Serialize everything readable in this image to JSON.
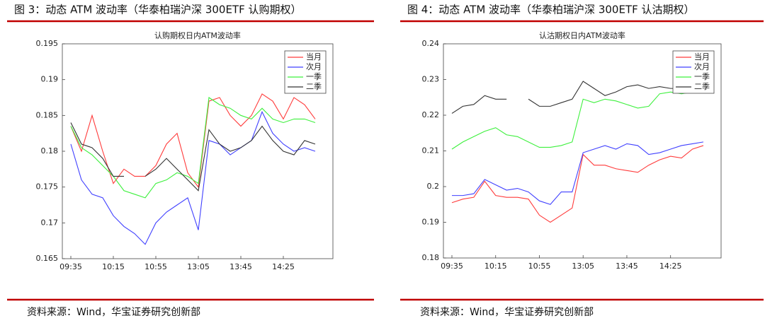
{
  "chart_data": [
    {
      "type": "line",
      "caption": "图 3：动态 ATM 波动率（华泰柏瑞沪深 300ETF 认购期权）",
      "title": "认购期权日内ATM波动率",
      "source": "资料来源：Wind，华宝证券研究创新部",
      "categories": [
        "09:35",
        null,
        null,
        null,
        "10:15",
        null,
        null,
        null,
        "10:55",
        null,
        null,
        null,
        "13:05",
        null,
        null,
        null,
        "13:45",
        null,
        null,
        null,
        "14:25",
        null,
        null,
        null
      ],
      "ylim": [
        0.165,
        0.195
      ],
      "yticks": [
        0.165,
        0.17,
        0.175,
        0.18,
        0.185,
        0.19,
        0.195
      ],
      "grid": false,
      "legend": "upper right",
      "series": [
        {
          "name": "当月",
          "color": "#ff3b3b",
          "values": [
            0.1835,
            0.18,
            0.185,
            0.18,
            0.1755,
            0.1775,
            0.1765,
            0.1765,
            0.178,
            0.181,
            0.1825,
            0.177,
            0.175,
            0.187,
            0.1875,
            0.185,
            0.1835,
            0.185,
            0.188,
            0.187,
            0.1845,
            0.1875,
            0.1865,
            0.1845
          ]
        },
        {
          "name": "次月",
          "color": "#4040ff",
          "values": [
            0.181,
            0.176,
            0.174,
            0.1735,
            0.171,
            0.1695,
            0.1685,
            0.167,
            0.17,
            0.1715,
            0.1725,
            0.1735,
            0.169,
            0.1815,
            0.181,
            0.1795,
            0.1805,
            0.1815,
            0.1855,
            0.1825,
            0.181,
            0.18,
            0.1805,
            0.18
          ]
        },
        {
          "name": "一季",
          "color": "#3cf03c",
          "values": [
            0.1835,
            0.1805,
            0.1795,
            0.178,
            0.1765,
            0.1745,
            0.174,
            0.1735,
            0.1755,
            0.176,
            0.177,
            0.1765,
            0.1755,
            0.1875,
            0.1865,
            0.186,
            0.185,
            0.1845,
            0.186,
            0.1845,
            0.184,
            0.1845,
            0.1845,
            0.184
          ]
        },
        {
          "name": "二季",
          "color": "#333333",
          "values": [
            0.184,
            0.181,
            0.1805,
            0.179,
            0.1765,
            0.1765,
            null,
            0.1765,
            0.1775,
            0.179,
            0.1775,
            0.176,
            0.1745,
            0.183,
            0.181,
            0.18,
            0.1805,
            0.1815,
            0.1835,
            0.1815,
            0.18,
            0.1795,
            0.1815,
            0.181
          ]
        }
      ]
    },
    {
      "type": "line",
      "caption": "图 4：动态 ATM 波动率（华泰柏瑞沪深 300ETF 认沽期权）",
      "title": "认沽期权日内ATM波动率",
      "source": "资料来源：Wind，华宝证券研究创新部",
      "categories": [
        "09:35",
        null,
        null,
        null,
        "10:15",
        null,
        null,
        null,
        "10:55",
        null,
        null,
        null,
        "13:05",
        null,
        null,
        null,
        "13:45",
        null,
        null,
        null,
        "14:25",
        null,
        null,
        null
      ],
      "ylim": [
        0.18,
        0.24
      ],
      "yticks": [
        0.18,
        0.19,
        0.2,
        0.21,
        0.22,
        0.23,
        0.24
      ],
      "grid": false,
      "legend": "upper right",
      "series": [
        {
          "name": "当月",
          "color": "#ff3b3b",
          "values": [
            0.1955,
            0.1965,
            0.197,
            0.2015,
            0.1975,
            0.197,
            0.197,
            0.1965,
            0.192,
            0.19,
            0.192,
            0.194,
            0.209,
            0.206,
            0.206,
            0.205,
            0.2045,
            0.204,
            0.206,
            0.2075,
            0.2085,
            0.208,
            0.2105,
            0.2115
          ]
        },
        {
          "name": "次月",
          "color": "#4040ff",
          "values": [
            0.1975,
            0.1975,
            0.198,
            0.202,
            0.2005,
            0.199,
            0.1995,
            0.1985,
            0.196,
            0.195,
            0.1985,
            0.1985,
            0.2095,
            0.2105,
            0.2115,
            0.2105,
            0.212,
            0.2115,
            0.209,
            0.2095,
            0.2105,
            0.2115,
            0.212,
            0.2125
          ]
        },
        {
          "name": "一季",
          "color": "#3cf03c",
          "values": [
            0.2105,
            0.2125,
            0.214,
            0.2155,
            0.2165,
            0.2145,
            0.214,
            0.2125,
            0.211,
            0.211,
            0.2115,
            0.2125,
            0.2245,
            0.2235,
            0.2245,
            0.224,
            0.223,
            0.222,
            0.2225,
            0.226,
            0.2265,
            0.226,
            0.2265,
            0.227
          ]
        },
        {
          "name": "二季",
          "color": "#333333",
          "values": [
            0.2205,
            0.2225,
            0.223,
            0.2255,
            0.2245,
            0.2245,
            null,
            0.2245,
            0.2225,
            0.2225,
            0.2235,
            0.2245,
            0.2295,
            0.2275,
            0.2255,
            0.2265,
            0.228,
            0.2285,
            0.2275,
            0.228,
            0.2275,
            0.2275,
            0.228,
            0.2285
          ]
        }
      ]
    }
  ]
}
